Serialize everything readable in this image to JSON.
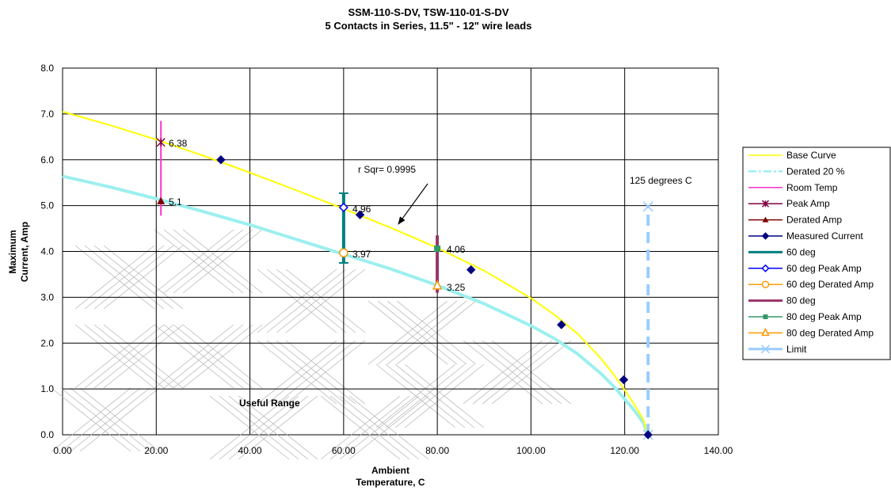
{
  "chart_data": {
    "type": "scatter",
    "title_line1": "SSM-110-S-DV, TSW-110-01-S-DV",
    "title_line2": "5 Contacts in Series, 11.5\" - 12\" wire leads",
    "xlabel_line1": "Ambient",
    "xlabel_line2": "Temperature, C",
    "ylabel_line1": "Maximum",
    "ylabel_line2": "Current, Amp",
    "xlim": [
      0,
      140
    ],
    "ylim": [
      0,
      8
    ],
    "x_ticks": [
      "0.00",
      "20.00",
      "40.00",
      "60.00",
      "80.00",
      "100.00",
      "120.00",
      "140.00"
    ],
    "y_ticks": [
      "0.0",
      "1.0",
      "2.0",
      "3.0",
      "4.0",
      "5.0",
      "6.0",
      "7.0",
      "8.0"
    ],
    "grid": true,
    "legend_position": "right",
    "series": [
      {
        "name": "Base Curve",
        "color": "#ffff00",
        "style": "line",
        "x": [
          0,
          10,
          20,
          30,
          40,
          50,
          60,
          70,
          80,
          90,
          100,
          105,
          110,
          115,
          118,
          120,
          122,
          124,
          125
        ],
        "y": [
          7.05,
          6.76,
          6.44,
          6.09,
          5.72,
          5.33,
          4.93,
          4.52,
          4.08,
          3.58,
          2.98,
          2.62,
          2.2,
          1.66,
          1.27,
          0.98,
          0.67,
          0.33,
          0.0
        ]
      },
      {
        "name": "Derated 20 %",
        "color": "#9cefef",
        "style": "line",
        "x": [
          0,
          10,
          20,
          30,
          40,
          50,
          60,
          70,
          80,
          90,
          100,
          105,
          110,
          115,
          118,
          120,
          122,
          124,
          125
        ],
        "y": [
          5.64,
          5.41,
          5.15,
          4.87,
          4.58,
          4.26,
          3.94,
          3.62,
          3.26,
          2.86,
          2.38,
          2.1,
          1.76,
          1.33,
          1.02,
          0.78,
          0.54,
          0.26,
          0.0
        ]
      },
      {
        "name": "Room Temp",
        "color": "#ff33cc",
        "style": "vline",
        "x": [
          21,
          21
        ],
        "y": [
          4.78,
          6.85
        ]
      },
      {
        "name": "Peak Amp",
        "color": "#800040",
        "style": "star",
        "x": [
          21
        ],
        "y": [
          6.38
        ]
      },
      {
        "name": "Derated Amp",
        "color": "#800000",
        "style": "triangle-filled",
        "x": [
          21
        ],
        "y": [
          5.1
        ]
      },
      {
        "name": "Measured Current",
        "color": "#000080",
        "style": "diamond-filled",
        "x": [
          33.8,
          63.5,
          87.2,
          106.5,
          119.8,
          125
        ],
        "y": [
          6.0,
          4.8,
          3.6,
          2.4,
          1.2,
          0.0
        ]
      },
      {
        "name": "60 deg",
        "color": "#008080",
        "style": "vline",
        "x": [
          60,
          60
        ],
        "y": [
          3.75,
          5.27
        ]
      },
      {
        "name": "60 deg Peak Amp",
        "color": "#0000ff",
        "style": "diamond-open",
        "x": [
          60
        ],
        "y": [
          4.96
        ]
      },
      {
        "name": "60 deg Derated Amp",
        "color": "#ff9900",
        "style": "circle-open",
        "x": [
          60
        ],
        "y": [
          3.97
        ]
      },
      {
        "name": "80 deg",
        "color": "#993366",
        "style": "vline",
        "x": [
          80,
          80
        ],
        "y": [
          3.1,
          4.35
        ]
      },
      {
        "name": "80 deg Peak Amp",
        "color": "#339966",
        "style": "square-filled",
        "x": [
          80
        ],
        "y": [
          4.06
        ]
      },
      {
        "name": "80 deg Derated Amp",
        "color": "#ff9900",
        "style": "triangle-open",
        "x": [
          80
        ],
        "y": [
          3.25
        ]
      },
      {
        "name": "Limit",
        "color": "#99ccff",
        "style": "dashed-vline",
        "x": [
          125,
          125
        ],
        "y": [
          0,
          4.98
        ]
      }
    ],
    "annotations": [
      {
        "id": "label-638",
        "text": "6.38",
        "x": 21,
        "y": 6.38
      },
      {
        "id": "label-51",
        "text": "5.1",
        "x": 21,
        "y": 5.1
      },
      {
        "id": "label-496",
        "text": "4.96",
        "x": 60,
        "y": 4.96
      },
      {
        "id": "label-397",
        "text": "3.97",
        "x": 60,
        "y": 3.97
      },
      {
        "id": "label-406",
        "text": "4.06",
        "x": 80,
        "y": 4.06
      },
      {
        "id": "label-325",
        "text": "3.25",
        "x": 80,
        "y": 3.25
      },
      {
        "id": "rsqr",
        "text": "r Sqr= 0.9995"
      },
      {
        "id": "limit-label",
        "text": "125 degrees C"
      },
      {
        "id": "useful-range",
        "text": "Useful Range"
      }
    ]
  }
}
